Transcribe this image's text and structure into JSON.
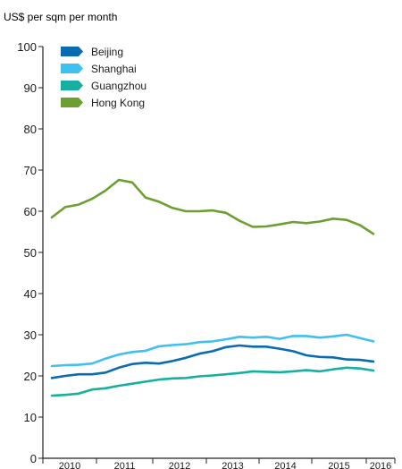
{
  "chart_data": {
    "type": "line",
    "title": "",
    "unit_label": "US$ per sqm per month",
    "xlabel": "",
    "ylabel": "",
    "ylim": [
      0,
      100
    ],
    "yticks": [
      "0",
      "10",
      "20",
      "30",
      "40",
      "50",
      "60",
      "70",
      "80",
      "90",
      "100"
    ],
    "xticks": [
      "2010",
      "2011",
      "2012",
      "2013",
      "2014",
      "2015",
      "2016"
    ],
    "xlim": [
      2010,
      2016.25
    ],
    "x": [
      2010.0,
      2010.25,
      2010.5,
      2010.75,
      2011.0,
      2011.25,
      2011.5,
      2011.75,
      2012.0,
      2012.25,
      2012.5,
      2012.75,
      2013.0,
      2013.25,
      2013.5,
      2013.75,
      2014.0,
      2014.25,
      2014.5,
      2014.75,
      2015.0,
      2015.25,
      2015.5,
      2015.75,
      2016.0,
      2016.25
    ],
    "legend_position": "top-left",
    "grid": false,
    "series": [
      {
        "name": "Beijing",
        "color": "#0a6bb0",
        "values": [
          19.5,
          20.0,
          20.4,
          20.4,
          20.8,
          22.0,
          22.9,
          23.2,
          23.0,
          23.6,
          24.4,
          25.4,
          26.0,
          27.0,
          27.4,
          27.1,
          27.1,
          26.6,
          26.0,
          25.0,
          24.6,
          24.5,
          24.0,
          23.9,
          23.5,
          null
        ]
      },
      {
        "name": "Shanghai",
        "color": "#3fc0ee",
        "values": [
          22.4,
          22.6,
          22.7,
          23.0,
          24.2,
          25.2,
          25.8,
          26.1,
          27.2,
          27.5,
          27.7,
          28.2,
          28.4,
          28.9,
          29.5,
          29.3,
          29.5,
          29.0,
          29.7,
          29.7,
          29.3,
          29.6,
          30.0,
          29.2,
          28.4,
          null
        ]
      },
      {
        "name": "Guangzhou",
        "color": "#17b0a0",
        "values": [
          15.2,
          15.4,
          15.7,
          16.7,
          17.0,
          17.6,
          18.1,
          18.6,
          19.1,
          19.4,
          19.5,
          19.9,
          20.1,
          20.4,
          20.7,
          21.1,
          21.0,
          20.9,
          21.1,
          21.4,
          21.1,
          21.6,
          22.0,
          21.8,
          21.3,
          null
        ]
      },
      {
        "name": "Hong Kong",
        "color": "#6c9e32",
        "values": [
          58.5,
          61.0,
          61.6,
          63.0,
          65.0,
          67.6,
          67.0,
          63.3,
          62.3,
          60.8,
          60.0,
          60.0,
          60.2,
          59.6,
          57.7,
          56.2,
          56.3,
          56.8,
          57.4,
          57.1,
          57.5,
          58.2,
          57.9,
          56.6,
          54.5,
          null
        ]
      }
    ]
  }
}
